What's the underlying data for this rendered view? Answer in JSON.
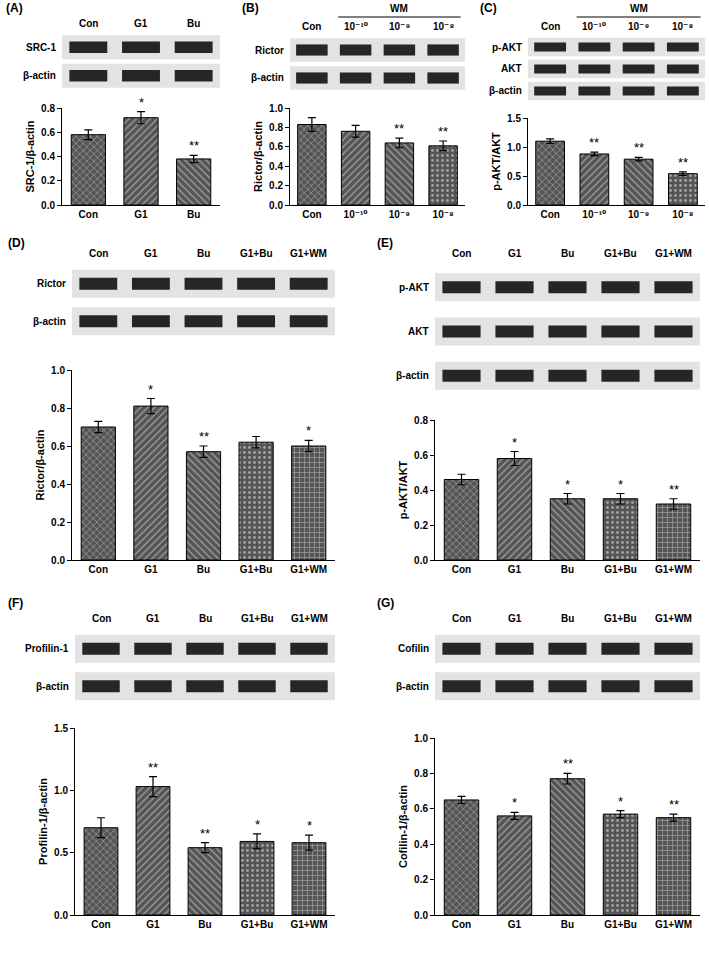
{
  "chart_data": [
    {
      "type": "bar",
      "title": "(A)",
      "categories": [
        "Con",
        "G1",
        "Bu"
      ],
      "values": [
        0.58,
        0.72,
        0.38
      ],
      "errors": [
        0.04,
        0.05,
        0.03
      ],
      "significance": [
        null,
        "*",
        "**"
      ],
      "ylabel": "SRC-1/β-actin",
      "ylim": [
        0,
        0.8
      ],
      "yticks": [
        {
          "value": 0,
          "label": "0.0"
        },
        0.2,
        0.4,
        0.6,
        0.8
      ],
      "color": "#555555",
      "blot": {
        "rows": [
          "SRC-1",
          "β-actin"
        ]
      }
    },
    {
      "type": "bar",
      "title": "(B)",
      "categories": [
        "Con",
        "10⁻¹⁰",
        "10⁻⁹",
        "10⁻⁸"
      ],
      "values": [
        0.83,
        0.76,
        0.64,
        0.61
      ],
      "errors": [
        0.07,
        0.06,
        0.05,
        0.05
      ],
      "significance": [
        null,
        null,
        "**",
        "**"
      ],
      "ylabel": "Rictor/β-actin",
      "ylim": [
        0,
        1.0
      ],
      "yticks": [
        {
          "value": 0,
          "label": "0.0"
        },
        0.2,
        0.4,
        0.6,
        0.8,
        {
          "value": 1,
          "label": "1.0"
        }
      ],
      "color": "#555555",
      "blot": {
        "rows": [
          "Rictor",
          "β-actin"
        ],
        "group": {
          "label": "WM",
          "lanes": [
            "10⁻¹⁰",
            "10⁻⁹",
            "10⁻⁸"
          ]
        }
      }
    },
    {
      "type": "bar",
      "title": "(C)",
      "categories": [
        "Con",
        "10⁻¹⁰",
        "10⁻⁹",
        "10⁻⁸"
      ],
      "values": [
        1.1,
        0.88,
        0.79,
        0.54
      ],
      "errors": [
        0.04,
        0.03,
        0.03,
        0.03
      ],
      "significance": [
        null,
        "**",
        "**",
        "**"
      ],
      "ylabel": "p-AKT/AKT",
      "ylim": [
        0,
        1.5
      ],
      "yticks": [
        {
          "value": 0,
          "label": "0.0"
        },
        0.5,
        {
          "value": 1,
          "label": "1.0"
        },
        1.5
      ],
      "color": "#555555",
      "blot": {
        "rows": [
          "p-AKT",
          "AKT",
          "β-actin"
        ],
        "group": {
          "label": "WM",
          "lanes": [
            "10⁻¹⁰",
            "10⁻⁹",
            "10⁻⁸"
          ]
        }
      }
    },
    {
      "type": "bar",
      "title": "(D)",
      "categories": [
        "Con",
        "G1",
        "Bu",
        "G1+Bu",
        "G1+WM"
      ],
      "values": [
        0.7,
        0.81,
        0.57,
        0.62,
        0.6
      ],
      "errors": [
        0.03,
        0.04,
        0.03,
        0.03,
        0.03
      ],
      "significance": [
        null,
        "*",
        "**",
        null,
        "*"
      ],
      "ylabel": "Rictor/β-actin",
      "ylim": [
        0,
        1.0
      ],
      "yticks": [
        {
          "value": 0,
          "label": "0.0"
        },
        0.2,
        0.4,
        0.6,
        0.8,
        {
          "value": 1,
          "label": "1.0"
        }
      ],
      "color": "#555555",
      "blot": {
        "rows": [
          "Rictor",
          "β-actin"
        ]
      }
    },
    {
      "type": "bar",
      "title": "(E)",
      "categories": [
        "Con",
        "G1",
        "Bu",
        "G1+Bu",
        "G1+WM"
      ],
      "values": [
        0.46,
        0.58,
        0.35,
        0.35,
        0.32
      ],
      "errors": [
        0.03,
        0.04,
        0.03,
        0.03,
        0.03
      ],
      "significance": [
        null,
        "*",
        "*",
        "*",
        "**"
      ],
      "ylabel": "p-AKT/AKT",
      "ylim": [
        0,
        0.8
      ],
      "yticks": [
        {
          "value": 0,
          "label": "0.0"
        },
        0.2,
        0.4,
        0.6,
        0.8
      ],
      "color": "#555555",
      "blot": {
        "rows": [
          "p-AKT",
          "AKT",
          "β-actin"
        ]
      }
    },
    {
      "type": "bar",
      "title": "(F)",
      "categories": [
        "Con",
        "G1",
        "Bu",
        "G1+Bu",
        "G1+WM"
      ],
      "values": [
        0.7,
        1.03,
        0.54,
        0.59,
        0.58
      ],
      "errors": [
        0.08,
        0.08,
        0.04,
        0.06,
        0.06
      ],
      "significance": [
        null,
        "**",
        "**",
        "*",
        "*"
      ],
      "ylabel": "Profilin-1/β-actin",
      "ylim": [
        0,
        1.5
      ],
      "yticks": [
        {
          "value": 0,
          "label": "0.0"
        },
        0.5,
        {
          "value": 1,
          "label": "1.0"
        },
        1.5
      ],
      "color": "#555555",
      "blot": {
        "rows": [
          "Profilin-1",
          "β-actin"
        ]
      }
    },
    {
      "type": "bar",
      "title": "(G)",
      "categories": [
        "Con",
        "G1",
        "Bu",
        "G1+Bu",
        "G1+WM"
      ],
      "values": [
        0.65,
        0.56,
        0.77,
        0.57,
        0.55
      ],
      "errors": [
        0.02,
        0.02,
        0.03,
        0.02,
        0.02
      ],
      "significance": [
        null,
        "*",
        "**",
        "*",
        "**"
      ],
      "ylabel": "Cofilin-1/β-actin",
      "ylim": [
        0,
        1.0
      ],
      "yticks": [
        {
          "value": 0,
          "label": "0.0"
        },
        0.2,
        0.4,
        0.6,
        0.8,
        {
          "value": 1,
          "label": "1.0"
        }
      ],
      "color": "#555555",
      "blot": {
        "rows": [
          "Cofilin",
          "β-actin"
        ]
      }
    }
  ]
}
